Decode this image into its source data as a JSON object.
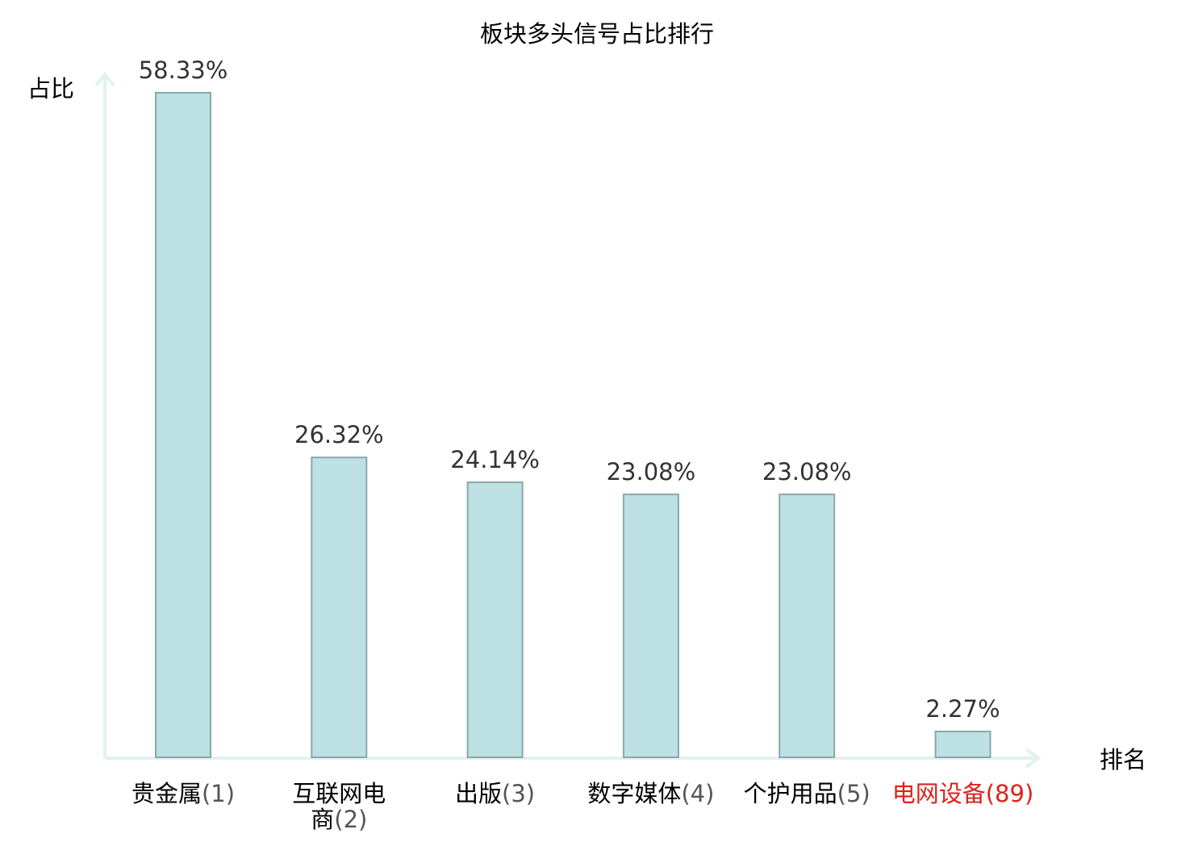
{
  "chart_data": {
    "type": "bar",
    "title": "板块多头信号占比排行",
    "ylabel": "占比",
    "xlabel": "排名",
    "categories": [
      {
        "name_lines": [
          "贵金属"
        ],
        "rank": "(1)",
        "highlight": false
      },
      {
        "name_lines": [
          "互联网电",
          "商"
        ],
        "rank": "(2)",
        "highlight": false
      },
      {
        "name_lines": [
          "出版"
        ],
        "rank": "(3)",
        "highlight": false
      },
      {
        "name_lines": [
          "数字媒体"
        ],
        "rank": "(4)",
        "highlight": false
      },
      {
        "name_lines": [
          "个护用品"
        ],
        "rank": "(5)",
        "highlight": false
      },
      {
        "name_lines": [
          "电网设备"
        ],
        "rank": "(89)",
        "highlight": true
      }
    ],
    "values": [
      58.33,
      26.32,
      24.14,
      23.08,
      23.08,
      2.27
    ],
    "value_labels": [
      "58.33%",
      "26.32%",
      "24.14%",
      "23.08%",
      "23.08%",
      "2.27%"
    ],
    "ylim": [
      0,
      58.33
    ],
    "grid": false,
    "colors": {
      "bar_fill": "#bde0e3",
      "bar_stroke": "#8aa8ab",
      "axis": "#e0f2ef",
      "text": "#333333",
      "highlight": "#e0201b"
    }
  }
}
